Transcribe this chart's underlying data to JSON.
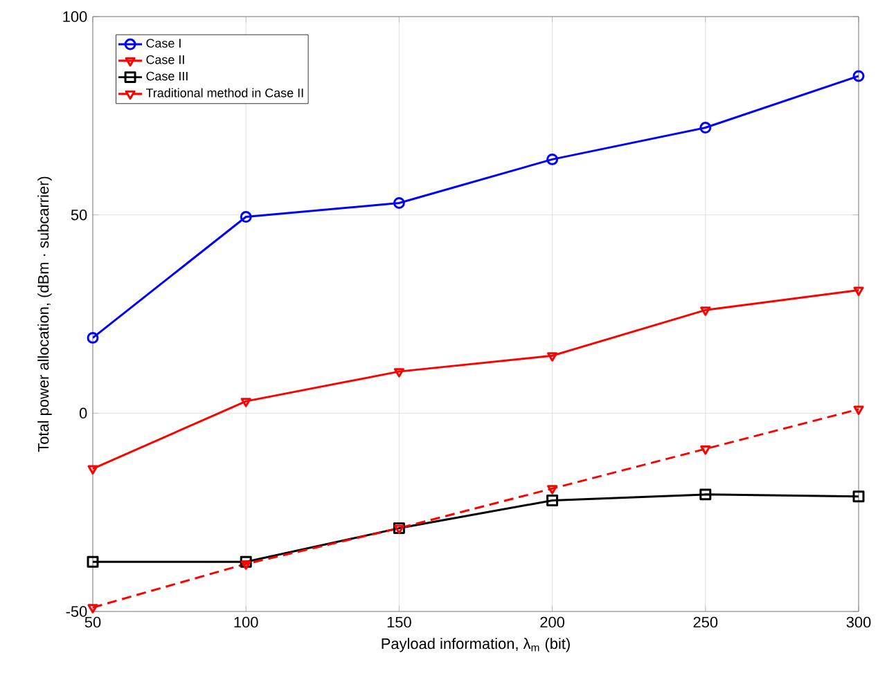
{
  "chart_data": {
    "type": "line",
    "xlabel": "Payload information, λ$_{m}$ (bit)",
    "ylabel": "Total power allocation, (dBm    · subcarrier)",
    "x": [
      50,
      100,
      150,
      200,
      250,
      300
    ],
    "series": [
      {
        "name": "Case I",
        "color": "#0000ff",
        "marker": "circle",
        "line_style": "solid",
        "values": [
          19,
          49.5,
          53,
          64,
          72,
          85
        ]
      },
      {
        "name": "Case II",
        "color": "#ff0000",
        "marker": "triangle",
        "line_style": "solid",
        "values": [
          -14,
          3,
          10.5,
          14.5,
          26,
          31
        ]
      },
      {
        "name": "Case III",
        "color": "#000000",
        "marker": "square",
        "line_style": "solid",
        "values": [
          -37.5,
          -37.5,
          -29,
          -22,
          -20.5,
          -21
        ]
      },
      {
        "name": "Traditional method in Case II",
        "color": "#ff0000",
        "marker": "triangle",
        "line_style": "dashed",
        "values": [
          -49,
          -38,
          -29,
          -19,
          -9,
          1
        ]
      }
    ],
    "xlim": [
      50,
      300
    ],
    "ylim": [
      -50,
      100
    ],
    "xticks": [
      50,
      100,
      150,
      200,
      250,
      300
    ],
    "yticks": [
      -50,
      0,
      50,
      100
    ],
    "grid": true,
    "legend": "top left"
  }
}
